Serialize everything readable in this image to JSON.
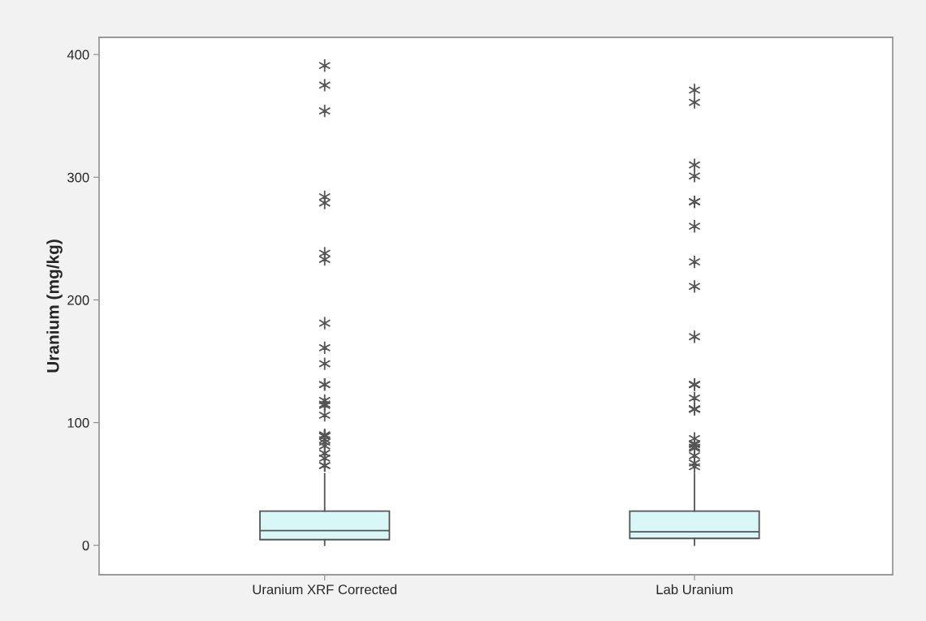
{
  "chart_data": {
    "type": "box",
    "ylabel": "Uranium (mg/kg)",
    "categories": [
      "Uranium XRF Corrected",
      "Lab Uranium"
    ],
    "color": "#d9f7f7",
    "boxes": [
      {
        "low": 0,
        "q1": 4.6,
        "median": 12,
        "q3": 27.8,
        "high": 58.5,
        "outliers": [
          391,
          375,
          354,
          284,
          279,
          238,
          233,
          181,
          161,
          148,
          131,
          131,
          118,
          115,
          114,
          106,
          90,
          89,
          89,
          86,
          84,
          81,
          75,
          71,
          65,
          65
        ]
      },
      {
        "low": 0,
        "q1": 5.6,
        "median": 11,
        "q3": 27.8,
        "high": 58.5,
        "outliers": [
          371,
          361,
          310,
          301,
          280,
          280,
          260,
          231,
          211,
          170,
          131,
          131,
          131,
          131,
          120,
          111,
          111,
          111,
          111,
          87,
          83,
          82,
          80,
          79,
          73,
          67,
          64
        ]
      }
    ],
    "ylim": [
      -24,
      414
    ],
    "yticks": [
      0,
      100,
      200,
      300,
      400
    ],
    "grid": false
  }
}
